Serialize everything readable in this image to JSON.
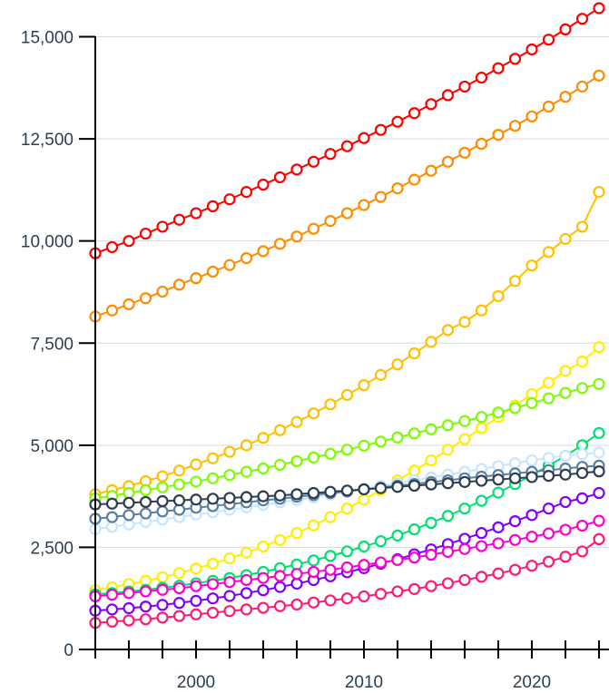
{
  "chart_data": {
    "type": "line",
    "title": "",
    "xlabel": "",
    "ylabel": "",
    "xlim": [
      1994,
      2024
    ],
    "ylim": [
      0,
      15500
    ],
    "y_ticks": [
      0,
      2500,
      5000,
      7500,
      10000,
      12500,
      15000
    ],
    "y_tick_labels": [
      "0",
      "2,500",
      "5,000",
      "7,500",
      "10,000",
      "12,500",
      "15,000"
    ],
    "x_tick_labels": [
      {
        "value": 2000,
        "label": "2000"
      },
      {
        "value": 2010,
        "label": "2010"
      },
      {
        "value": 2020,
        "label": "2020"
      }
    ],
    "grid": "horizontal",
    "legend": "none",
    "x": [
      1994,
      1995,
      1996,
      1997,
      1998,
      1999,
      2000,
      2001,
      2002,
      2003,
      2004,
      2005,
      2006,
      2007,
      2008,
      2009,
      2010,
      2011,
      2012,
      2013,
      2014,
      2015,
      2016,
      2017,
      2018,
      2019,
      2020,
      2021,
      2022,
      2023,
      2024
    ],
    "series": [
      {
        "color": "#ff0000",
        "values": [
          9700,
          9850,
          10000,
          10180,
          10350,
          10520,
          10680,
          10850,
          11020,
          11200,
          11380,
          11560,
          11750,
          11940,
          12130,
          12320,
          12520,
          12720,
          12920,
          13130,
          13350,
          13570,
          13780,
          14000,
          14230,
          14460,
          14690,
          14930,
          15180,
          15440,
          15700
        ]
      },
      {
        "color": "#ff8c00",
        "values": [
          8150,
          8300,
          8450,
          8600,
          8760,
          8930,
          9090,
          9250,
          9410,
          9580,
          9750,
          9930,
          10110,
          10300,
          10490,
          10680,
          10880,
          11080,
          11290,
          11500,
          11720,
          11940,
          12160,
          12380,
          12600,
          12820,
          13050,
          13290,
          13530,
          13780,
          14050
        ]
      },
      {
        "color": "#ffc000",
        "values": [
          3800,
          3900,
          4000,
          4120,
          4240,
          4380,
          4530,
          4680,
          4840,
          5000,
          5180,
          5370,
          5570,
          5780,
          6000,
          6230,
          6470,
          6720,
          6980,
          7250,
          7530,
          7820,
          8020,
          8300,
          8650,
          9020,
          9400,
          9730,
          10050,
          10350,
          11200
        ]
      },
      {
        "color": "#ffee00",
        "values": [
          1450,
          1520,
          1600,
          1680,
          1770,
          1870,
          1980,
          2100,
          2230,
          2370,
          2520,
          2680,
          2850,
          3040,
          3240,
          3450,
          3670,
          3900,
          4140,
          4380,
          4630,
          4890,
          5150,
          5420,
          5690,
          5970,
          6250,
          6530,
          6820,
          7050,
          7400
        ]
      },
      {
        "color": "#7cfc00",
        "values": [
          3700,
          3760,
          3830,
          3900,
          3970,
          4040,
          4110,
          4190,
          4270,
          4350,
          4430,
          4520,
          4610,
          4700,
          4790,
          4890,
          4990,
          5090,
          5190,
          5290,
          5390,
          5490,
          5590,
          5690,
          5800,
          5910,
          6030,
          6150,
          6280,
          6400,
          6500
        ]
      },
      {
        "color": "#00e070",
        "values": [
          1350,
          1380,
          1420,
          1460,
          1510,
          1560,
          1620,
          1680,
          1750,
          1820,
          1900,
          1990,
          2080,
          2180,
          2290,
          2400,
          2520,
          2650,
          2790,
          2940,
          3100,
          3270,
          3450,
          3640,
          3840,
          4050,
          4270,
          4500,
          4740,
          5000,
          5300
        ]
      },
      {
        "color": "#c6e6ff",
        "values": [
          2950,
          3000,
          3060,
          3120,
          3180,
          3240,
          3300,
          3360,
          3420,
          3480,
          3540,
          3600,
          3660,
          3720,
          3790,
          3860,
          3930,
          4000,
          4070,
          4140,
          4210,
          4280,
          4350,
          4420,
          4490,
          4560,
          4630,
          4690,
          4740,
          4780,
          4820
        ]
      },
      {
        "color": "#5a7fa0",
        "values": [
          3200,
          3240,
          3290,
          3330,
          3380,
          3420,
          3470,
          3510,
          3560,
          3600,
          3650,
          3690,
          3740,
          3780,
          3830,
          3870,
          3920,
          3960,
          4010,
          4050,
          4100,
          4140,
          4190,
          4230,
          4270,
          4310,
          4350,
          4390,
          4430,
          4470,
          4500
        ]
      },
      {
        "color": "#2c3e50",
        "values": [
          3550,
          3570,
          3590,
          3610,
          3630,
          3650,
          3670,
          3690,
          3710,
          3730,
          3750,
          3770,
          3800,
          3830,
          3860,
          3890,
          3920,
          3950,
          3980,
          4010,
          4040,
          4070,
          4100,
          4130,
          4160,
          4190,
          4220,
          4250,
          4280,
          4320,
          4360
        ]
      },
      {
        "color": "#8000ff",
        "values": [
          950,
          980,
          1010,
          1050,
          1090,
          1140,
          1190,
          1250,
          1310,
          1380,
          1450,
          1530,
          1610,
          1700,
          1790,
          1890,
          1990,
          2100,
          2210,
          2330,
          2450,
          2580,
          2710,
          2850,
          2990,
          3140,
          3290,
          3450,
          3610,
          3700,
          3830
        ]
      },
      {
        "color": "#ff00cc",
        "values": [
          1300,
          1340,
          1380,
          1420,
          1460,
          1500,
          1550,
          1600,
          1650,
          1700,
          1750,
          1800,
          1850,
          1900,
          1950,
          2010,
          2070,
          2130,
          2190,
          2250,
          2320,
          2390,
          2460,
          2530,
          2600,
          2680,
          2760,
          2840,
          2930,
          3030,
          3150
        ]
      },
      {
        "color": "#ff1a75",
        "values": [
          650,
          680,
          710,
          740,
          780,
          820,
          860,
          900,
          940,
          980,
          1020,
          1060,
          1100,
          1150,
          1200,
          1250,
          1300,
          1360,
          1420,
          1480,
          1550,
          1620,
          1700,
          1780,
          1860,
          1950,
          2050,
          2150,
          2270,
          2400,
          2700
        ]
      }
    ]
  }
}
